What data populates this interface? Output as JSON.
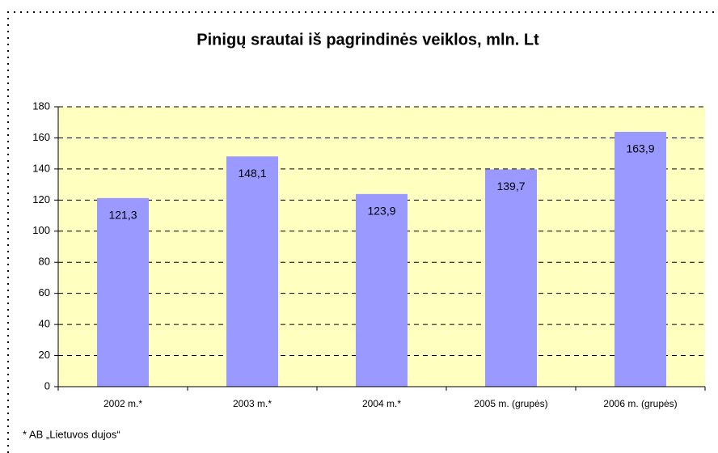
{
  "chart_data": {
    "type": "bar",
    "title": "Pinigų srautai iš pagrindinės veiklos, mln. Lt",
    "categories": [
      "2002 m.*",
      "2003 m.*",
      "2004 m.*",
      "2005 m. (grupės)",
      "2006 m. (grupės)"
    ],
    "values": [
      121.3,
      148.1,
      123.9,
      139.7,
      163.9
    ],
    "value_labels": [
      "121,3",
      "148,1",
      "123,9",
      "139,7",
      "163,9"
    ],
    "color": "#9999ff",
    "plot_background": "#ffffc0",
    "ylim": [
      0,
      180
    ],
    "yticks": [
      0,
      20,
      40,
      60,
      80,
      100,
      120,
      140,
      160,
      180
    ],
    "grid": true,
    "footnote": "* AB „Lietuvos dujos“"
  }
}
